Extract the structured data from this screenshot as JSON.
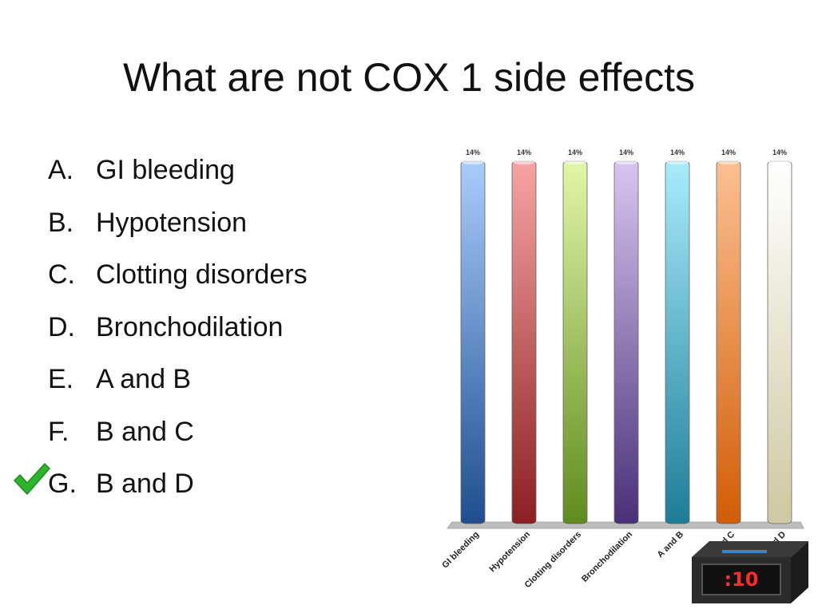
{
  "slide": {
    "title": "What are not COX 1 side effects",
    "options": [
      {
        "letter": "A.",
        "text": "GI bleeding"
      },
      {
        "letter": "B.",
        "text": "Hypotension"
      },
      {
        "letter": "C.",
        "text": "Clotting disorders"
      },
      {
        "letter": "D.",
        "text": "Bronchodilation"
      },
      {
        "letter": "E.",
        "text": "A and B"
      },
      {
        "letter": "F.",
        "text": "B and C"
      },
      {
        "letter": "G.",
        "text": "B and D"
      }
    ],
    "correct_option": "G.",
    "check_icon": "check-mark-icon",
    "check_color": "#2db52d"
  },
  "chart_data": {
    "type": "bar",
    "categories": [
      "GI bleeding",
      "Hypotension",
      "Clotting disorders",
      "Bronchodilation",
      "A and B",
      "B and C",
      "B and D"
    ],
    "visible_tick_labels": [
      "GI bleeding",
      "Hypotension",
      "Clotting disorders",
      "Bronchodilation",
      "A and B",
      "d C",
      "d D"
    ],
    "values": [
      14,
      14,
      14,
      14,
      14,
      14,
      14
    ],
    "data_labels": [
      "14%",
      "14%",
      "14%",
      "14%",
      "14%",
      "14%",
      "14%"
    ],
    "ylim": [
      0,
      14
    ],
    "grid": false,
    "colors": [
      [
        "#a8cdfb",
        "#1f4d8f"
      ],
      [
        "#f8a4a4",
        "#8c1f22"
      ],
      [
        "#e2f6a8",
        "#5f8c1e"
      ],
      [
        "#d8c6ef",
        "#4a2f78"
      ],
      [
        "#a8ecfb",
        "#1d7d96"
      ],
      [
        "#fbc092",
        "#d15d06"
      ],
      [
        "#ffffff",
        "#cfc8a0"
      ]
    ]
  },
  "timer": {
    "display": ":10",
    "icon": "countdown-timer-icon"
  }
}
